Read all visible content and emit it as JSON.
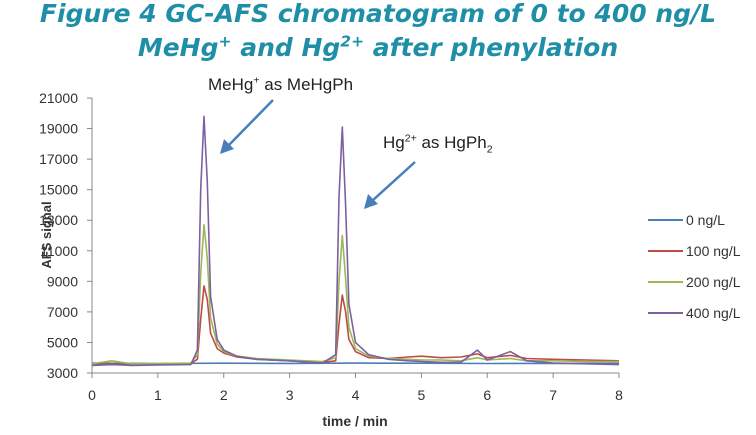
{
  "title_line_1": "Figure 4 GC-AFS chromatogram of 0 to 400 ng/L",
  "title_line_2": {
    "a": "MeHg",
    "a_sup": "+",
    "b": " and Hg",
    "b_sup": "2+",
    "c": " after phenylation"
  },
  "annotations": {
    "methyl": {
      "a": "MeHg",
      "sup": "+",
      "b": " as MeHgPh"
    },
    "inorganic": {
      "a": "Hg",
      "sup": "2+",
      "b": " as HgPh",
      "sub": "2"
    }
  },
  "chart_data": {
    "type": "line",
    "title": "",
    "xlabel": "time / min",
    "ylabel": "AFS signal",
    "xlim": [
      0,
      8
    ],
    "ylim": [
      3000,
      21000
    ],
    "x_ticks": [
      0,
      1,
      2,
      3,
      4,
      5,
      6,
      7,
      8
    ],
    "y_ticks": [
      3000,
      5000,
      7000,
      9000,
      11000,
      13000,
      15000,
      17000,
      19000,
      21000
    ],
    "grid": false,
    "legend_position": "right",
    "series": [
      {
        "name": "0 ng/L",
        "color": "#4a7ebb",
        "points": [
          [
            0,
            3650
          ],
          [
            1,
            3620
          ],
          [
            2,
            3640
          ],
          [
            3,
            3630
          ],
          [
            4,
            3650
          ],
          [
            5,
            3640
          ],
          [
            6,
            3620
          ],
          [
            7,
            3630
          ],
          [
            8,
            3640
          ]
        ]
      },
      {
        "name": "100 ng/L",
        "color": "#be4b48",
        "points": [
          [
            0,
            3550
          ],
          [
            0.3,
            3600
          ],
          [
            0.6,
            3540
          ],
          [
            1.0,
            3580
          ],
          [
            1.5,
            3620
          ],
          [
            1.6,
            3900
          ],
          [
            1.65,
            6500
          ],
          [
            1.7,
            8700
          ],
          [
            1.75,
            7800
          ],
          [
            1.8,
            5600
          ],
          [
            1.9,
            4600
          ],
          [
            2.0,
            4300
          ],
          [
            2.2,
            4050
          ],
          [
            2.5,
            3900
          ],
          [
            3.0,
            3800
          ],
          [
            3.5,
            3700
          ],
          [
            3.7,
            3800
          ],
          [
            3.75,
            6200
          ],
          [
            3.8,
            8100
          ],
          [
            3.85,
            7000
          ],
          [
            3.9,
            5200
          ],
          [
            4.0,
            4400
          ],
          [
            4.2,
            4000
          ],
          [
            4.5,
            3950
          ],
          [
            4.8,
            4050
          ],
          [
            5.0,
            4100
          ],
          [
            5.3,
            4000
          ],
          [
            5.6,
            4050
          ],
          [
            5.85,
            4250
          ],
          [
            6.0,
            4000
          ],
          [
            6.35,
            4150
          ],
          [
            6.6,
            3950
          ],
          [
            7.0,
            3900
          ],
          [
            7.5,
            3850
          ],
          [
            8.0,
            3800
          ]
        ]
      },
      {
        "name": "200 ng/L",
        "color": "#98b954",
        "points": [
          [
            0,
            3600
          ],
          [
            0.3,
            3800
          ],
          [
            0.6,
            3600
          ],
          [
            1.0,
            3620
          ],
          [
            1.5,
            3650
          ],
          [
            1.6,
            4200
          ],
          [
            1.65,
            9500
          ],
          [
            1.7,
            12700
          ],
          [
            1.75,
            10500
          ],
          [
            1.8,
            6600
          ],
          [
            1.9,
            4900
          ],
          [
            2.0,
            4400
          ],
          [
            2.2,
            4100
          ],
          [
            2.5,
            3950
          ],
          [
            3.0,
            3850
          ],
          [
            3.5,
            3750
          ],
          [
            3.7,
            4000
          ],
          [
            3.75,
            9000
          ],
          [
            3.8,
            12000
          ],
          [
            3.85,
            9200
          ],
          [
            3.9,
            6000
          ],
          [
            4.0,
            4600
          ],
          [
            4.2,
            4100
          ],
          [
            4.5,
            3950
          ],
          [
            4.8,
            3900
          ],
          [
            5.0,
            3850
          ],
          [
            5.3,
            3850
          ],
          [
            5.6,
            3800
          ],
          [
            5.85,
            4000
          ],
          [
            6.0,
            3850
          ],
          [
            6.35,
            3950
          ],
          [
            6.6,
            3800
          ],
          [
            7.0,
            3800
          ],
          [
            7.5,
            3750
          ],
          [
            8.0,
            3750
          ]
        ]
      },
      {
        "name": "400 ng/L",
        "color": "#7d60a0",
        "points": [
          [
            0,
            3500
          ],
          [
            0.3,
            3550
          ],
          [
            0.6,
            3500
          ],
          [
            1.0,
            3530
          ],
          [
            1.5,
            3550
          ],
          [
            1.6,
            4500
          ],
          [
            1.65,
            15000
          ],
          [
            1.7,
            19800
          ],
          [
            1.75,
            15500
          ],
          [
            1.8,
            8000
          ],
          [
            1.9,
            5200
          ],
          [
            2.0,
            4500
          ],
          [
            2.2,
            4100
          ],
          [
            2.5,
            3900
          ],
          [
            3.0,
            3800
          ],
          [
            3.5,
            3650
          ],
          [
            3.7,
            4200
          ],
          [
            3.75,
            14500
          ],
          [
            3.8,
            19100
          ],
          [
            3.85,
            14000
          ],
          [
            3.9,
            7500
          ],
          [
            4.0,
            5000
          ],
          [
            4.2,
            4200
          ],
          [
            4.5,
            3900
          ],
          [
            4.8,
            3800
          ],
          [
            5.0,
            3750
          ],
          [
            5.3,
            3700
          ],
          [
            5.6,
            3700
          ],
          [
            5.85,
            4500
          ],
          [
            6.0,
            3850
          ],
          [
            6.35,
            4400
          ],
          [
            6.6,
            3800
          ],
          [
            7.0,
            3650
          ],
          [
            7.5,
            3600
          ],
          [
            8.0,
            3550
          ]
        ]
      }
    ]
  }
}
